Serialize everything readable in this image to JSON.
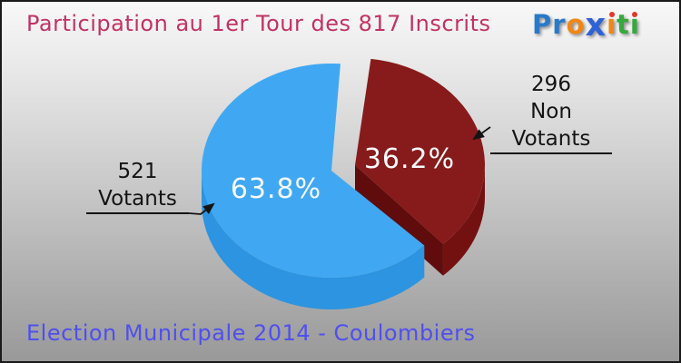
{
  "header": {
    "title": "Participation au 1er Tour des 817 Inscrits",
    "color": "#c23263"
  },
  "footer": {
    "subtitle": "Election Municipale 2014 - Coulombiers",
    "color": "#4f4ff0"
  },
  "logo": {
    "name": "Proxiti",
    "letters": [
      {
        "ch": "P",
        "color": "#2a79c9"
      },
      {
        "ch": "r",
        "color": "#2a79c9"
      },
      {
        "ch": "o",
        "color": "#f28613"
      },
      {
        "ch": "x",
        "color": "#2f62d4",
        "bold": true
      },
      {
        "ch": "i",
        "color": "#f28613",
        "dot_color": "#e2372b"
      },
      {
        "ch": "t",
        "color": "#35a93c"
      },
      {
        "ch": "i",
        "color": "#35a93c",
        "dot_color": "#e2372b"
      }
    ]
  },
  "chart_data": {
    "type": "pie",
    "style": "3d-exploded",
    "title": "Participation au 1er Tour des 817 Inscrits",
    "subtitle": "Election Municipale 2014 - Coulombiers",
    "total": 817,
    "total_label": "817 Inscrits",
    "legend_position": "callouts",
    "slices": [
      {
        "label": "Votants",
        "value": 521,
        "pct": 63.8,
        "pct_label": "63.8%",
        "color": "#40a8f2",
        "side_color": "#2c94e0",
        "exploded": false
      },
      {
        "label": "Non Votants",
        "value": 296,
        "pct": 36.2,
        "pct_label": "36.2%",
        "color": "#871b1b",
        "side_color": "#731111",
        "cut_color": "#600c0c",
        "exploded": true
      }
    ],
    "callouts": [
      {
        "value": "521",
        "label": "Votants",
        "side": "left"
      },
      {
        "value": "296",
        "label": "Non Votants",
        "side": "right"
      }
    ]
  }
}
